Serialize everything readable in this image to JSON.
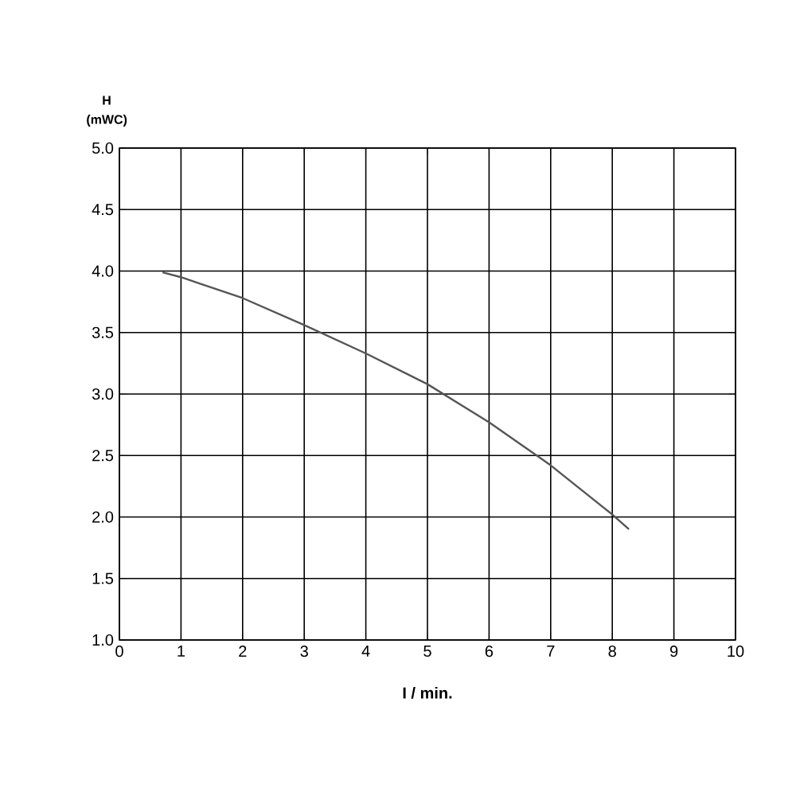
{
  "chart_data": {
    "type": "line",
    "xlabel": "I / min.",
    "ylabel": "H (mWC)",
    "x": [
      0.7,
      1,
      2,
      3,
      4,
      5,
      6,
      7,
      8,
      8.27
    ],
    "series": [
      {
        "color": "#555555",
        "values": [
          3.99,
          3.95,
          3.78,
          3.56,
          3.33,
          3.08,
          2.77,
          2.42,
          2.02,
          1.9
        ]
      }
    ],
    "xlim": [
      0,
      10
    ],
    "ylim": [
      1,
      5
    ],
    "xticks": [
      0,
      1,
      2,
      3,
      4,
      5,
      6,
      7,
      8,
      9,
      10
    ],
    "yticks": [
      {
        "value": 1,
        "label": "1.0"
      },
      {
        "value": 1.5,
        "label": "1.5"
      },
      {
        "value": 2,
        "label": "2.0"
      },
      {
        "value": 2.5,
        "label": "2.5"
      },
      {
        "value": 3,
        "label": "3.0"
      },
      {
        "value": 3.5,
        "label": "3.5"
      },
      {
        "value": 4,
        "label": "4.0"
      },
      {
        "value": 4.5,
        "label": "4.5"
      },
      {
        "value": 5,
        "label": "5.0"
      }
    ],
    "grid": true,
    "marker": "none",
    "line_style": "solid"
  }
}
